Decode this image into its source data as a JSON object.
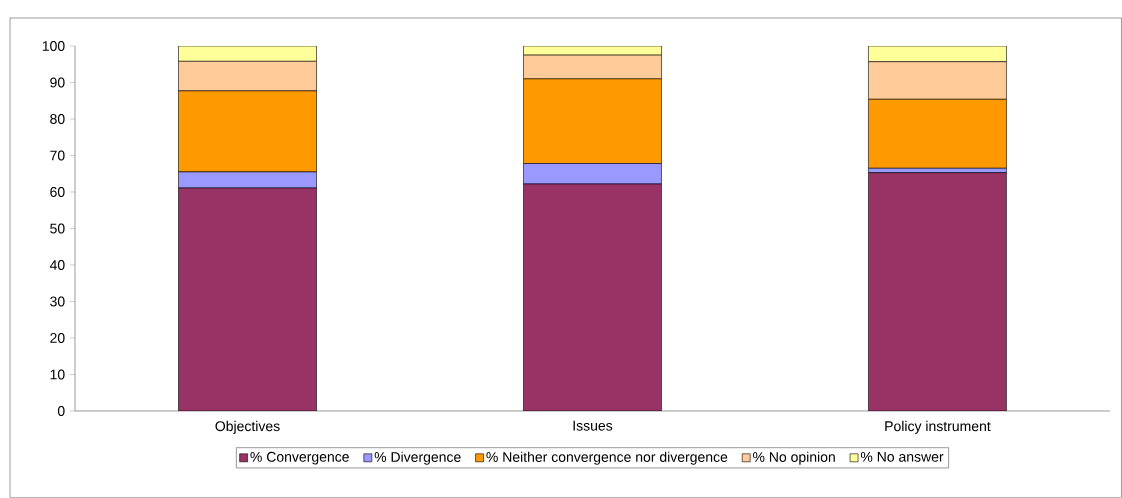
{
  "chart_data": {
    "type": "bar",
    "stacked": true,
    "categories": [
      "Objectives",
      "Issues",
      "Policy instrument"
    ],
    "series": [
      {
        "name": "% Convergence",
        "color": "#993366",
        "values": [
          61.1,
          62.2,
          65.3
        ]
      },
      {
        "name": "% Divergence",
        "color": "#9999ff",
        "values": [
          4.4,
          5.6,
          1.2
        ]
      },
      {
        "name": "% Neither convergence nor divergence",
        "color": "#ff9900",
        "values": [
          22.2,
          23.2,
          18.9
        ]
      },
      {
        "name": "% No opinion",
        "color": "#ffcc99",
        "values": [
          8.1,
          6.5,
          10.3
        ]
      },
      {
        "name": "% No answer",
        "color": "#ffff99",
        "values": [
          4.2,
          2.5,
          4.3
        ]
      }
    ],
    "ylim": [
      0,
      100
    ],
    "yticks": [
      0,
      10,
      20,
      30,
      40,
      50,
      60,
      70,
      80,
      90,
      100
    ],
    "legend": "bottom",
    "grid": false
  }
}
